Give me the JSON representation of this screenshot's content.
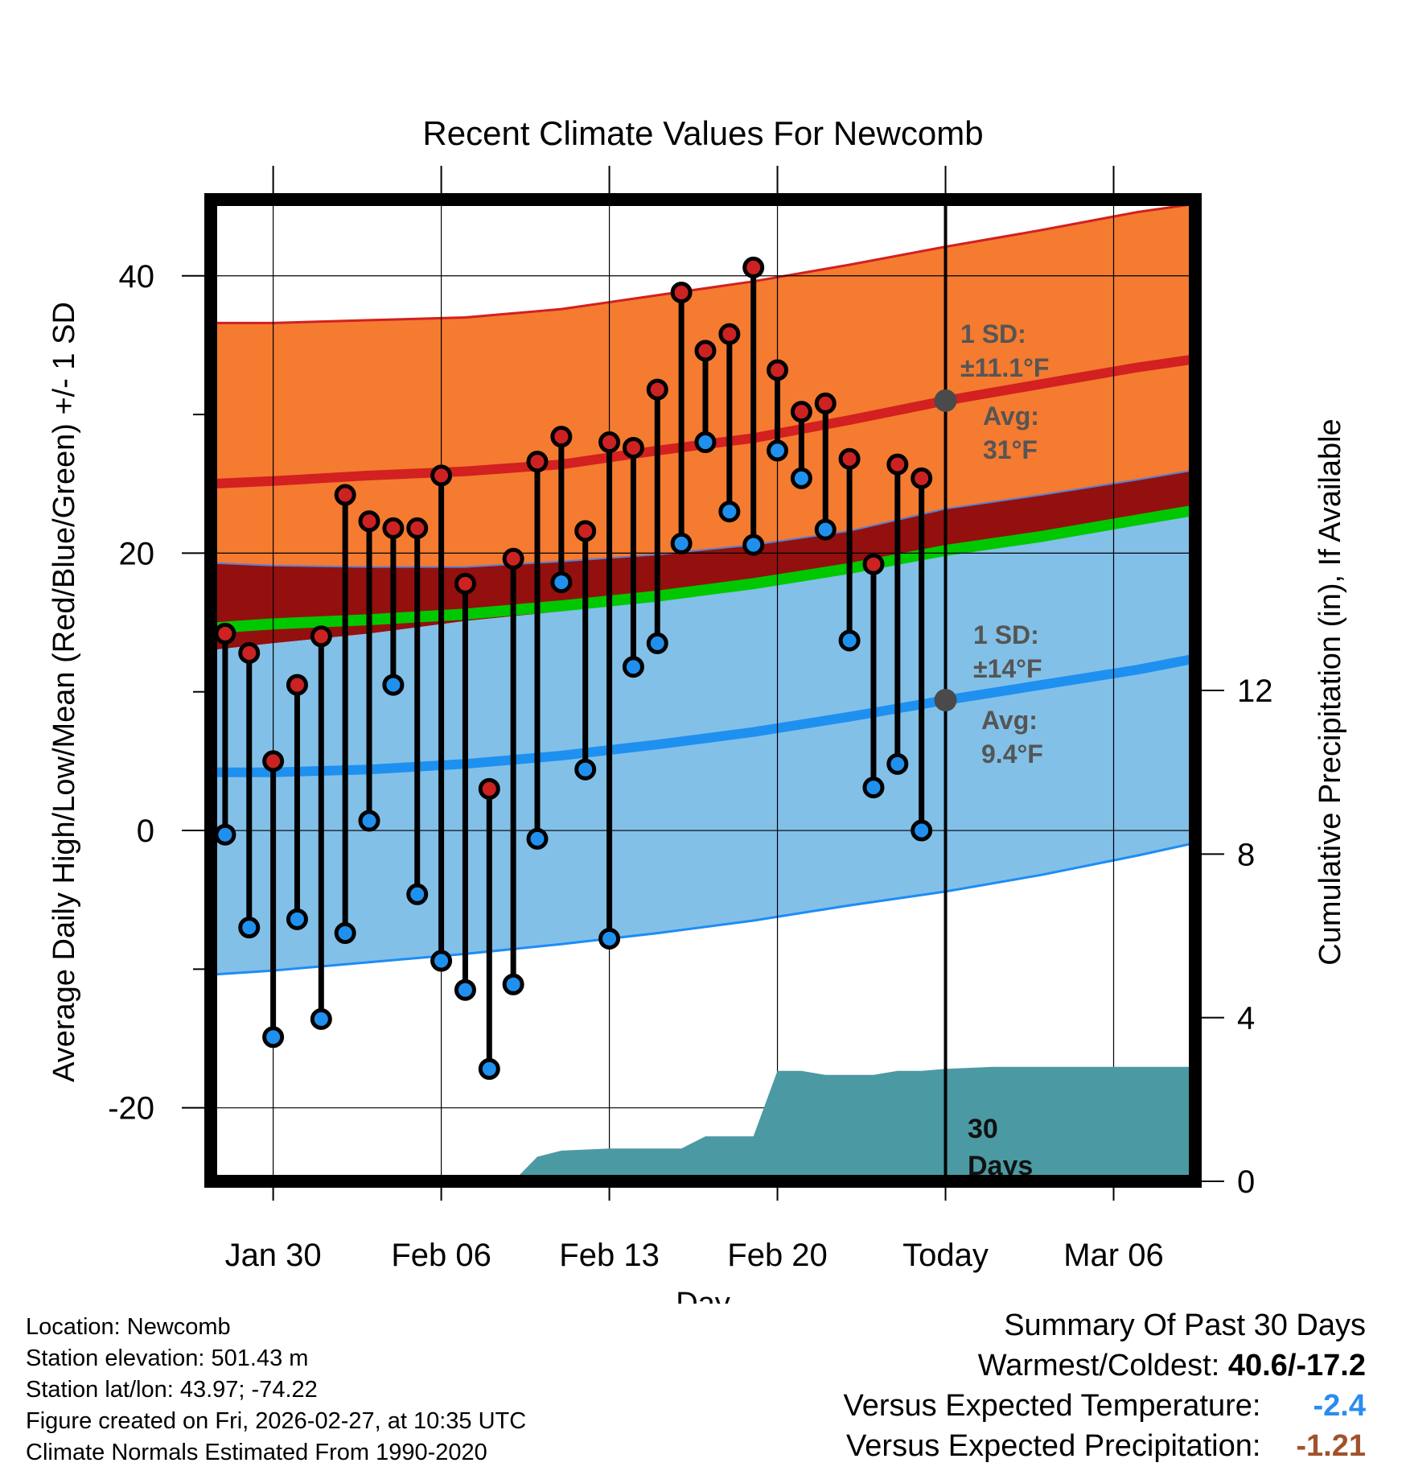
{
  "chart_data": {
    "type": "line",
    "title": "Recent Climate Values For Newcomb",
    "xlabel": "Day",
    "ylabel": "Average Daily High/Low/Mean (Red/Blue/Green) +/- 1 SD",
    "y2label": "Cumulative Precipitation (in), If Available",
    "ylim": [
      -25.3,
      45.5
    ],
    "y2lim": [
      0,
      24
    ],
    "xlim": [
      -2.6,
      38.4
    ],
    "x_unit": "days since Jan 30",
    "x_ticks": [
      {
        "x": 0,
        "label": "Jan 30"
      },
      {
        "x": 7,
        "label": "Feb 06"
      },
      {
        "x": 14,
        "label": "Feb 13"
      },
      {
        "x": 21,
        "label": "Feb 20"
      },
      {
        "x": 28,
        "label": "Today"
      },
      {
        "x": 35,
        "label": "Mar 06"
      }
    ],
    "y_ticks": [
      {
        "v": -20,
        "label": "-20"
      },
      {
        "v": 0,
        "label": "0"
      },
      {
        "v": 20,
        "label": "20"
      },
      {
        "v": 40,
        "label": "40"
      }
    ],
    "y_minor_ticks": [
      -10,
      10,
      30
    ],
    "y2_ticks": [
      {
        "v": 0,
        "label": "0"
      },
      {
        "v": 4,
        "label": "4"
      },
      {
        "v": 8,
        "label": "8"
      },
      {
        "v": 12,
        "label": "12"
      }
    ],
    "today_x": 28,
    "normals": {
      "x": [
        -2.6,
        0,
        4,
        8,
        12,
        16,
        20,
        24,
        28,
        32,
        36,
        38.4
      ],
      "high_mean": [
        25.0,
        25.2,
        25.6,
        25.9,
        26.4,
        27.4,
        28.3,
        29.6,
        31.0,
        32.2,
        33.4,
        34.0
      ],
      "high_upper": [
        36.6,
        36.6,
        36.8,
        37.0,
        37.6,
        38.6,
        39.6,
        40.8,
        42.1,
        43.3,
        44.6,
        45.2
      ],
      "high_lower": [
        19.3,
        19.1,
        19.0,
        19.0,
        19.4,
        19.9,
        20.6,
        21.6,
        23.2,
        24.2,
        25.3,
        26.0
      ],
      "mean_upper": [
        15.0,
        15.3,
        15.6,
        16.0,
        16.6,
        17.3,
        18.2,
        19.3,
        20.6,
        21.6,
        22.8,
        23.5
      ],
      "mean_lower": [
        14.2,
        14.5,
        14.8,
        15.2,
        15.8,
        16.5,
        17.4,
        18.5,
        19.8,
        20.8,
        22.0,
        22.7
      ],
      "low_mean": [
        4.2,
        4.2,
        4.4,
        4.8,
        5.4,
        6.2,
        7.1,
        8.2,
        9.4,
        10.5,
        11.6,
        12.4
      ],
      "low_upper": [
        13.0,
        13.5,
        14.2,
        15.1,
        15.8,
        16.6,
        17.5,
        18.7,
        20.1,
        21.2,
        22.3,
        22.8
      ],
      "low_lower": [
        -10.4,
        -10.1,
        -9.5,
        -8.9,
        -8.2,
        -7.4,
        -6.5,
        -5.4,
        -4.4,
        -3.2,
        -1.8,
        -0.9
      ]
    },
    "series": [
      {
        "name": "Daily High",
        "color": "#cc2222",
        "values": [
          14.2,
          12.8,
          5.0,
          10.5,
          14.0,
          24.2,
          22.3,
          21.8,
          21.8,
          25.6,
          17.8,
          3.0,
          19.6,
          26.6,
          28.4,
          21.6,
          28.0,
          27.6,
          31.8,
          38.8,
          34.6,
          35.8,
          40.6,
          33.2,
          30.2,
          30.8,
          26.8,
          19.2,
          26.4,
          25.4
        ]
      },
      {
        "name": "Daily Low",
        "color": "#2090ee",
        "values": [
          -0.3,
          -7.0,
          -14.9,
          -6.4,
          -13.6,
          -7.4,
          0.7,
          10.5,
          -4.6,
          -9.4,
          -11.5,
          -17.2,
          -11.1,
          -0.6,
          17.9,
          4.4,
          -7.8,
          11.8,
          13.5,
          20.7,
          28.0,
          23.0,
          20.6,
          27.4,
          25.4,
          21.7,
          13.7,
          3.1,
          4.8,
          0.0
        ]
      },
      {
        "name": "Cumulative Precipitation",
        "color": "#4b9aa3",
        "x": [
          -2.6,
          10,
          11,
          12,
          14,
          17,
          18,
          19,
          20,
          21,
          22,
          23,
          25,
          26,
          27,
          28,
          30,
          38.4
        ],
        "values": [
          0,
          0,
          0.6,
          0.75,
          0.8,
          0.8,
          1.1,
          1.1,
          1.1,
          2.7,
          2.7,
          2.6,
          2.6,
          2.7,
          2.7,
          2.75,
          2.8,
          2.8
        ]
      }
    ],
    "annotations": {
      "high_sd_title": "1 SD:",
      "high_sd_value": "±11.1°F",
      "high_avg_title": "Avg:",
      "high_avg_value": "31°F",
      "high_avg": 31.0,
      "low_sd_title": "1 SD:",
      "low_sd_value": "±14°F",
      "low_avg_title": "Avg:",
      "low_avg_value": "9.4°F",
      "low_avg": 9.4,
      "days_number": "30",
      "days_word": "Days"
    }
  },
  "colors": {
    "high_band": "#f47b30",
    "high_line": "#d32020",
    "dark_band": "#93100f",
    "mean_band": "#00c800",
    "low_band": "#82c0e8",
    "low_line": "#1e90f0",
    "low_edge": "#1e8cf5",
    "precip": "#4b9aa3",
    "high_dot": "#cc2222",
    "low_dot": "#2090ee",
    "avg_dot": "#4a4a4a"
  },
  "footer": {
    "location": "Location: Newcomb",
    "elevation": "Station elevation: 501.43 m",
    "latlon": "Station lat/lon: 43.97; -74.22",
    "created": "Figure created on Fri, 2026-02-27, at 10:35 UTC",
    "normals": "Climate Normals Estimated From 1990-2020"
  },
  "summary": {
    "title": "Summary Of Past 30 Days",
    "warmest_label": "Warmest/Coldest:",
    "warmest_value": "40.6/-17.2",
    "temp_label": "Versus Expected Temperature:",
    "temp_value": "-2.4",
    "temp_color": "#2a8cf0",
    "precip_label": "Versus Expected Precipitation:",
    "precip_value": "-1.21",
    "precip_color": "#a0522d"
  }
}
